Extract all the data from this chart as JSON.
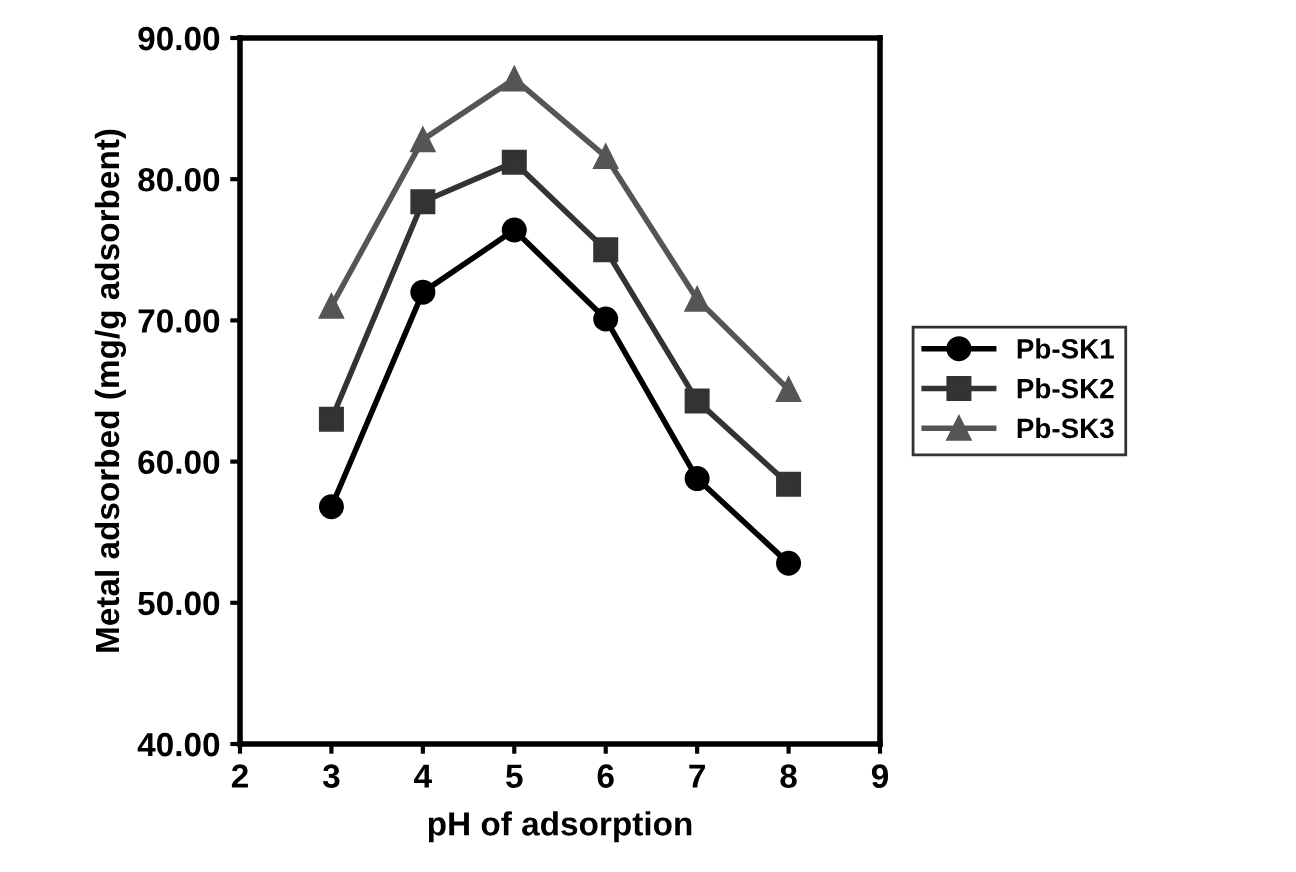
{
  "chart_data": {
    "type": "line",
    "xlabel": "pH of adsorption",
    "ylabel": "Metal adsorbed (mg/g adsorbent)",
    "x": [
      3,
      4,
      5,
      6,
      7,
      8
    ],
    "series": [
      {
        "name": "Pb-SK1",
        "color": "#000000",
        "marker": "circle",
        "values": [
          56.8,
          72.0,
          76.4,
          70.1,
          58.8,
          52.8
        ]
      },
      {
        "name": "Pb-SK2",
        "color": "#333333",
        "marker": "square",
        "values": [
          63.0,
          78.4,
          81.2,
          75.0,
          64.3,
          58.4
        ]
      },
      {
        "name": "Pb-SK3",
        "color": "#555555",
        "marker": "triangle",
        "values": [
          71.0,
          82.8,
          87.1,
          81.6,
          71.5,
          65.1
        ]
      }
    ],
    "xlim": [
      2,
      9
    ],
    "xticks": [
      2,
      3,
      4,
      5,
      6,
      7,
      8,
      9
    ],
    "ylim": [
      40,
      90
    ],
    "yticks": [
      {
        "value": 40,
        "label": "40.00"
      },
      {
        "value": 50,
        "label": "50.00"
      },
      {
        "value": 60,
        "label": "60.00"
      },
      {
        "value": 70,
        "label": "70.00"
      },
      {
        "value": 80,
        "label": "80.00"
      },
      {
        "value": 90,
        "label": "90.00"
      }
    ],
    "grid": false,
    "legend": "right",
    "line_style": "solid"
  }
}
